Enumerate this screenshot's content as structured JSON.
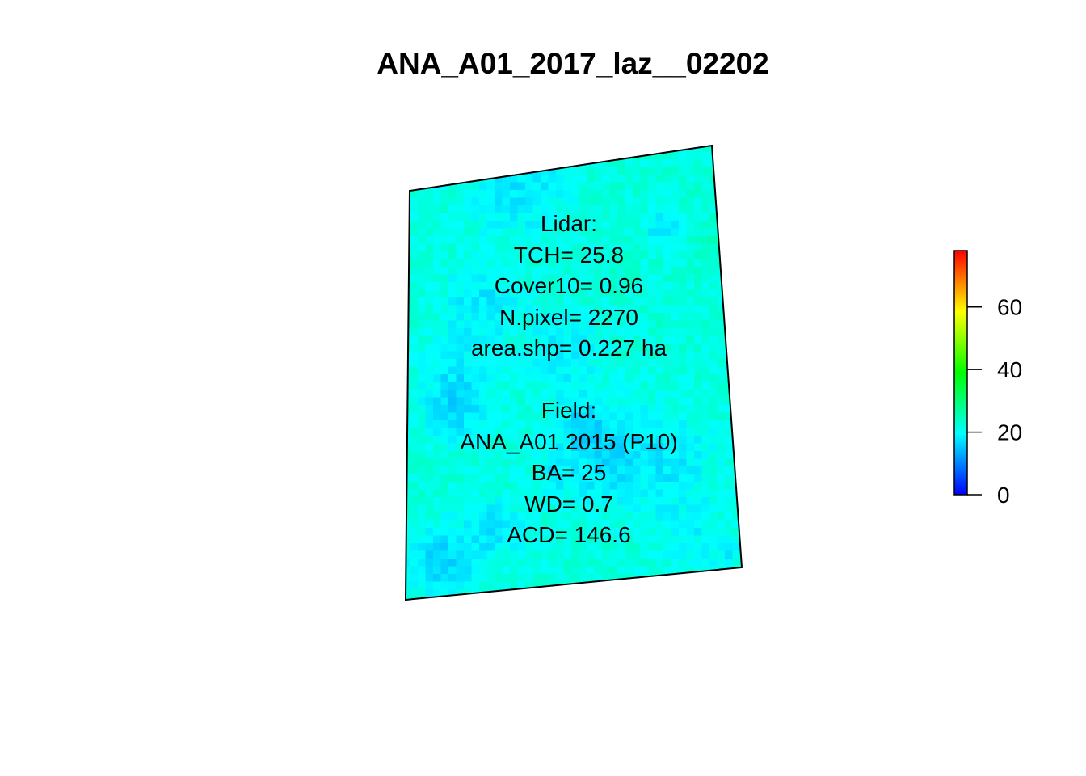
{
  "chart_data": {
    "type": "heatmap",
    "title": "ANA_A01_2017_laz__02202",
    "colorbar": {
      "ticks": [
        0,
        20,
        40,
        60
      ],
      "range": [
        0,
        78
      ],
      "palette": [
        "#0000ff",
        "#00ffff",
        "#00ff00",
        "#ffff00",
        "#ff0000"
      ]
    },
    "lidar_annotation": [
      "Lidar:",
      "TCH= 25.8",
      "Cover10= 0.96",
      "N.pixel= 2270",
      "area.shp= 0.227 ha"
    ],
    "field_annotation": [
      "Field:",
      "ANA_A01 2015 (P10)",
      "BA= 25",
      "WD= 0.7",
      "ACD= 146.6"
    ]
  }
}
